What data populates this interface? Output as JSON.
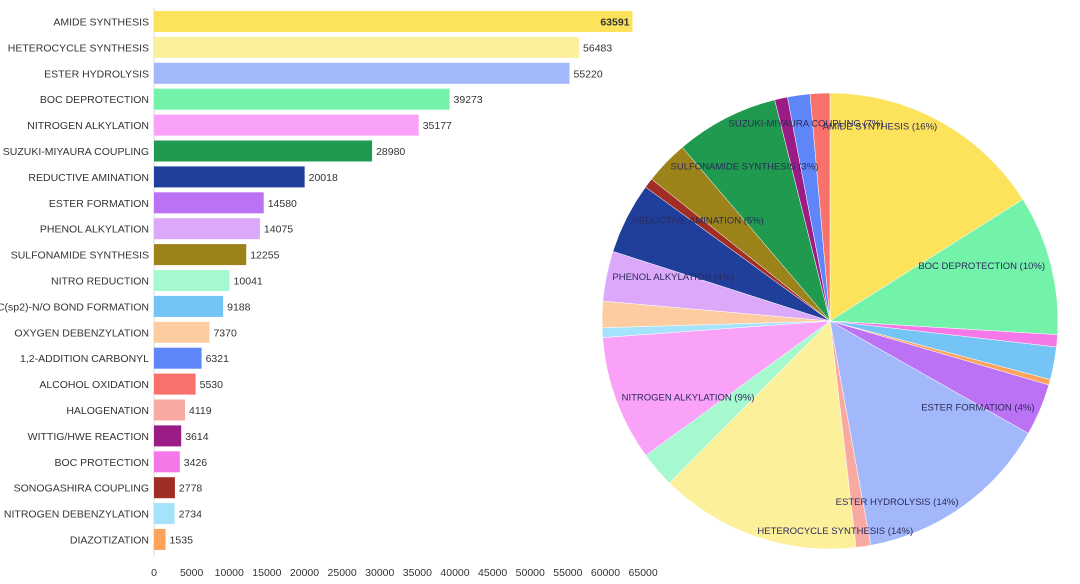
{
  "chart_data": [
    {
      "type": "bar",
      "orientation": "horizontal",
      "categories": [
        "AMIDE SYNTHESIS",
        "HETEROCYCLE SYNTHESIS",
        "ESTER HYDROLYSIS",
        "BOC DEPROTECTION",
        "NITROGEN ALKYLATION",
        "SUZUKI-MIYAURA COUPLING",
        "REDUCTIVE AMINATION",
        "ESTER FORMATION",
        "PHENOL ALKYLATION",
        "SULFONAMIDE SYNTHESIS",
        "NITRO REDUCTION",
        "C(sp2)-N/O BOND FORMATION",
        "OXYGEN DEBENZYLATION",
        "1,2-ADDITION CARBONYL",
        "ALCOHOL OXIDATION",
        "HALOGENATION",
        "WITTIG/HWE REACTION",
        "BOC PROTECTION",
        "SONOGASHIRA COUPLING",
        "NITROGEN DEBENZYLATION",
        "DIAZOTIZATION"
      ],
      "values": [
        63591,
        56483,
        55220,
        39273,
        35177,
        28980,
        20018,
        14580,
        14075,
        12255,
        10041,
        9188,
        7370,
        6321,
        5530,
        4119,
        3614,
        3426,
        2778,
        2734,
        1535
      ],
      "value_labels": [
        "63591",
        "56483",
        "55220",
        "39273",
        "35177",
        "28980",
        "20018",
        "14580",
        "14075",
        "12255",
        "10041",
        "9188",
        "7370",
        "6321",
        "5530",
        "4119",
        "3614",
        "3426",
        "2778",
        "2734",
        "1535"
      ],
      "colors": [
        "#fde35c",
        "#fdf09a",
        "#a3b8fb",
        "#73f2aa",
        "#f9a2f8",
        "#1f9a4f",
        "#203f9a",
        "#bb72f5",
        "#dca8fa",
        "#9c8319",
        "#a6f8cf",
        "#74c4f6",
        "#fdcca0",
        "#5f86f8",
        "#f9716a",
        "#f8aaa2",
        "#9b1c84",
        "#f478e8",
        "#a22d24",
        "#a5e2fc",
        "#fda35c"
      ],
      "xlim": [
        0,
        65000
      ],
      "xticks": [
        "0",
        "5000",
        "10000",
        "15000",
        "20000",
        "25000",
        "30000",
        "35000",
        "40000",
        "45000",
        "50000",
        "55000",
        "60000",
        "65000"
      ],
      "grid": false
    },
    {
      "type": "pie",
      "labels": [
        "AMIDE SYNTHESIS (16%)",
        "BOC DEPROTECTION (10%)",
        "ESTER FORMATION (4%)",
        "ESTER HYDROLYSIS (14%)",
        "HETEROCYCLE SYNTHESIS (14%)",
        "NITROGEN ALKYLATION (9%)",
        "PHENOL ALKYLATION (4%)",
        "REDUCTIVE AMINATION (5%)",
        "SULFONAMIDE SYNTHESIS (3%)",
        "SUZUKI-MIYAURA COUPLING (7%)"
      ],
      "slices": [
        {
          "category": "AMIDE SYNTHESIS",
          "value": 63591,
          "color": "#fde35c",
          "label_index": 0
        },
        {
          "category": "BOC DEPROTECTION",
          "value": 39273,
          "color": "#73f2aa",
          "label_index": 1
        },
        {
          "category": "BOC PROTECTION",
          "value": 3426,
          "color": "#f478e8"
        },
        {
          "category": "C(sp2)-N/O BOND FORMATION",
          "value": 9188,
          "color": "#74c4f6"
        },
        {
          "category": "DIAZOTIZATION",
          "value": 1535,
          "color": "#fda35c"
        },
        {
          "category": "ESTER FORMATION",
          "value": 14580,
          "color": "#bb72f5",
          "label_index": 2
        },
        {
          "category": "ESTER HYDROLYSIS",
          "value": 55220,
          "color": "#a3b8fb",
          "label_index": 3
        },
        {
          "category": "HALOGENATION",
          "value": 4119,
          "color": "#f8aaa2"
        },
        {
          "category": "HETEROCYCLE SYNTHESIS",
          "value": 56483,
          "color": "#fdf09a",
          "label_index": 4
        },
        {
          "category": "NITRO REDUCTION",
          "value": 10041,
          "color": "#a6f8cf"
        },
        {
          "category": "NITROGEN ALKYLATION",
          "value": 35177,
          "color": "#f9a2f8",
          "label_index": 5
        },
        {
          "category": "NITROGEN DEBENZYLATION",
          "value": 2734,
          "color": "#a5e2fc"
        },
        {
          "category": "OXYGEN DEBENZYLATION",
          "value": 7370,
          "color": "#fdcca0"
        },
        {
          "category": "PHENOL ALKYLATION",
          "value": 14075,
          "color": "#dca8fa",
          "label_index": 6
        },
        {
          "category": "REDUCTIVE AMINATION",
          "value": 20018,
          "color": "#203f9a",
          "label_index": 7
        },
        {
          "category": "SONOGASHIRA COUPLING",
          "value": 2778,
          "color": "#a22d24"
        },
        {
          "category": "SULFONAMIDE SYNTHESIS",
          "value": 12255,
          "color": "#9c8319",
          "label_index": 8
        },
        {
          "category": "SUZUKI-MIYAURA COUPLING",
          "value": 28980,
          "color": "#1f9a4f",
          "label_index": 9
        },
        {
          "category": "WITTIG/HWE REACTION",
          "value": 3614,
          "color": "#9b1c84"
        },
        {
          "category": "1,2-ADDITION CARBONYL",
          "value": 6321,
          "color": "#5f86f8"
        },
        {
          "category": "ALCOHOL OXIDATION",
          "value": 5530,
          "color": "#f9716a"
        }
      ],
      "start_angle_deg": 0,
      "direction": "clockwise"
    }
  ]
}
